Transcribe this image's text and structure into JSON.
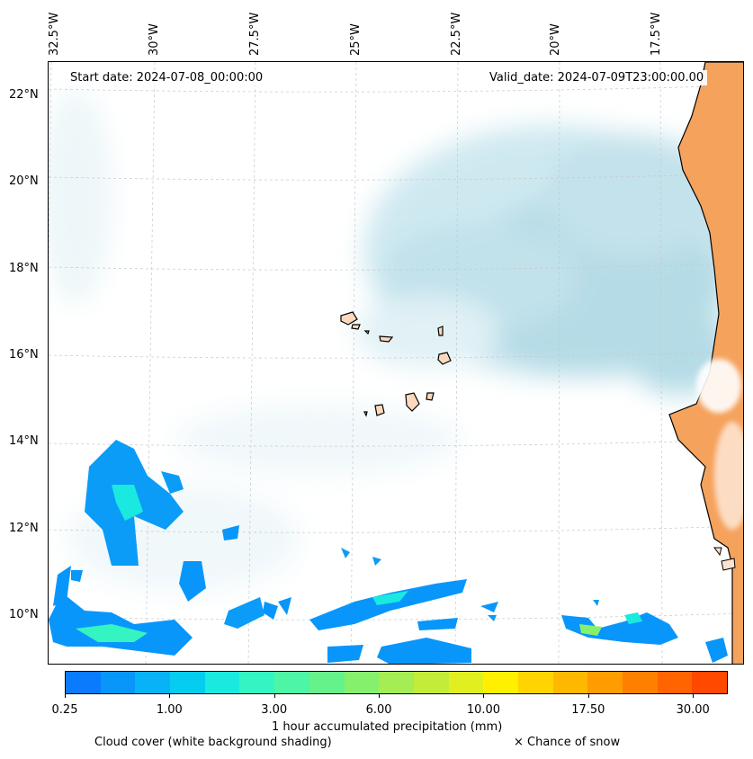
{
  "map": {
    "start_date": "Start date: 2024-07-08_00:00:00",
    "valid_date": "Valid_date: 2024-07-09T23:00:00.00",
    "longitude_labels": [
      "32.5°W",
      "30°W",
      "27.5°W",
      "25°W",
      "22.5°W",
      "20°W",
      "17.5°W"
    ],
    "latitude_labels": [
      "22°N",
      "20°N",
      "18°N",
      "16°N",
      "14°N",
      "12°N",
      "10°N"
    ]
  },
  "colorbar": {
    "tick_labels": [
      "0.25",
      "1.00",
      "3.00",
      "6.00",
      "10.00",
      "17.50",
      "30.00"
    ],
    "colors": [
      "#0a7bff",
      "#0996fb",
      "#08b2f6",
      "#06cdf0",
      "#1ae9e0",
      "#34f5c2",
      "#4df5a5",
      "#66f28a",
      "#86f06c",
      "#a5ed52",
      "#c3ec3a",
      "#e1ef20",
      "#fff000",
      "#ffd400",
      "#ffb800",
      "#ff9c00",
      "#ff8000",
      "#ff6400",
      "#ff4800"
    ],
    "label": "1 hour accumulated precipitation (mm)"
  },
  "legend": {
    "cloud_cover": "Cloud cover (white background shading)",
    "snow": "× Chance of snow"
  },
  "colors": {
    "land": "#f5a25d",
    "cloud": "#a8d5e2",
    "precip_light": "#0a9cf7"
  }
}
